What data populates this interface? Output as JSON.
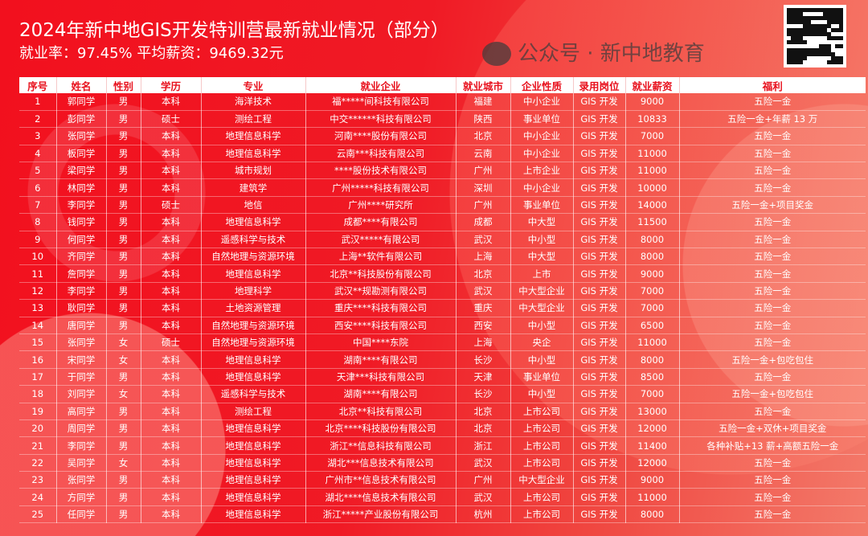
{
  "title": "2024年新中地GIS开发特训营最新就业情况（部分）",
  "subtitle": "就业率：97.45% 平均薪资：9469.32元",
  "watermark": "公众号 · 新中地教育",
  "headers": [
    "序号",
    "姓名",
    "性别",
    "学历",
    "专业",
    "就业企业",
    "就业城市",
    "企业性质",
    "录用岗位",
    "就业薪资",
    "福利"
  ],
  "rows": [
    [
      "1",
      "郭同学",
      "男",
      "本科",
      "海洋技术",
      "福*****间科技有限公司",
      "福建",
      "中小企业",
      "GIS 开发",
      "9000",
      "五险一金"
    ],
    [
      "2",
      "彭同学",
      "男",
      "硕士",
      "测绘工程",
      "中交******科技有限公司",
      "陕西",
      "事业单位",
      "GIS 开发",
      "10833",
      "五险一金+年薪 13 万"
    ],
    [
      "3",
      "张同学",
      "男",
      "本科",
      "地理信息科学",
      "河南****股份有限公司",
      "北京",
      "中小企业",
      "GIS 开发",
      "7000",
      "五险一金"
    ],
    [
      "4",
      "板同学",
      "男",
      "本科",
      "地理信息科学",
      "云南***科技有限公司",
      "云南",
      "中小企业",
      "GIS 开发",
      "11000",
      "五险一金"
    ],
    [
      "5",
      "梁同学",
      "男",
      "本科",
      "城市规划",
      "****股份技术有限公司",
      "广州",
      "上市企业",
      "GIS 开发",
      "11000",
      "五险一金"
    ],
    [
      "6",
      "林同学",
      "男",
      "本科",
      "建筑学",
      "广州*****科技有限公司",
      "深圳",
      "中小企业",
      "GIS 开发",
      "10000",
      "五险一金"
    ],
    [
      "7",
      "李同学",
      "男",
      "硕士",
      "地信",
      "广州****研究所",
      "广州",
      "事业单位",
      "GIS 开发",
      "14000",
      "五险一金+项目奖金"
    ],
    [
      "8",
      "钱同学",
      "男",
      "本科",
      "地理信息科学",
      "成都****有限公司",
      "成都",
      "中大型",
      "GIS 开发",
      "11500",
      "五险一金"
    ],
    [
      "9",
      "何同学",
      "男",
      "本科",
      "遥感科学与技术",
      "武汉*****有限公司",
      "武汉",
      "中小型",
      "GIS 开发",
      "8000",
      "五险一金"
    ],
    [
      "10",
      "齐同学",
      "男",
      "本科",
      "自然地理与资源环境",
      "上海**软件有限公司",
      "上海",
      "中大型",
      "GIS 开发",
      "8000",
      "五险一金"
    ],
    [
      "11",
      "詹同学",
      "男",
      "本科",
      "地理信息科学",
      "北京**科技股份有限公司",
      "北京",
      "上市",
      "GIS 开发",
      "9000",
      "五险一金"
    ],
    [
      "12",
      "李同学",
      "男",
      "本科",
      "地理科学",
      "武汉**规勘测有限公司",
      "武汉",
      "中大型企业",
      "GIS 开发",
      "7000",
      "五险一金"
    ],
    [
      "13",
      "耿同学",
      "男",
      "本科",
      "土地资源管理",
      "重庆****科技有限公司",
      "重庆",
      "中大型企业",
      "GIS 开发",
      "7000",
      "五险一金"
    ],
    [
      "14",
      "唐同学",
      "男",
      "本科",
      "自然地理与资源环境",
      "西安****科技有限公司",
      "西安",
      "中小型",
      "GIS 开发",
      "6500",
      "五险一金"
    ],
    [
      "15",
      "张同学",
      "女",
      "硕士",
      "自然地理与资源环境",
      "中国****东院",
      "上海",
      "央企",
      "GIS 开发",
      "11000",
      "五险一金"
    ],
    [
      "16",
      "宋同学",
      "女",
      "本科",
      "地理信息科学",
      "湖南****有限公司",
      "长沙",
      "中小型",
      "GIS 开发",
      "8000",
      "五险一金+包吃包住"
    ],
    [
      "17",
      "于同学",
      "男",
      "本科",
      "地理信息科学",
      "天津***科技有限公司",
      "天津",
      "事业单位",
      "GIS 开发",
      "8500",
      "五险一金"
    ],
    [
      "18",
      "刘同学",
      "女",
      "本科",
      "遥感科学与技术",
      "湖南****有限公司",
      "长沙",
      "中小型",
      "GIS 开发",
      "7000",
      "五险一金+包吃包住"
    ],
    [
      "19",
      "高同学",
      "男",
      "本科",
      "测绘工程",
      "北京**科技有限公司",
      "北京",
      "上市公司",
      "GIS 开发",
      "13000",
      "五险一金"
    ],
    [
      "20",
      "周同学",
      "男",
      "本科",
      "地理信息科学",
      "北京****科技股份有限公司",
      "北京",
      "上市公司",
      "GIS 开发",
      "12000",
      "五险一金+双休+项目奖金"
    ],
    [
      "21",
      "李同学",
      "男",
      "本科",
      "地理信息科学",
      "浙江**信息科技有限公司",
      "浙江",
      "上市公司",
      "GIS 开发",
      "11400",
      "各种补贴+13 薪+高额五险一金"
    ],
    [
      "22",
      "吴同学",
      "女",
      "本科",
      "地理信息科学",
      "湖北***信息技术有限公司",
      "武汉",
      "上市公司",
      "GIS 开发",
      "12000",
      "五险一金"
    ],
    [
      "23",
      "张同学",
      "男",
      "本科",
      "地理信息科学",
      "广州市**信息技术有限公司",
      "广州",
      "中大型企业",
      "GIS 开发",
      "9000",
      "五险一金"
    ],
    [
      "24",
      "方同学",
      "男",
      "本科",
      "地理信息科学",
      "湖北****信息技术有限公司",
      "武汉",
      "上市公司",
      "GIS 开发",
      "11000",
      "五险一金"
    ],
    [
      "25",
      "任同学",
      "男",
      "本科",
      "地理信息科学",
      "浙江*****产业股份有限公司",
      "杭州",
      "上市公司",
      "GIS 开发",
      "8000",
      "五险一金"
    ]
  ]
}
